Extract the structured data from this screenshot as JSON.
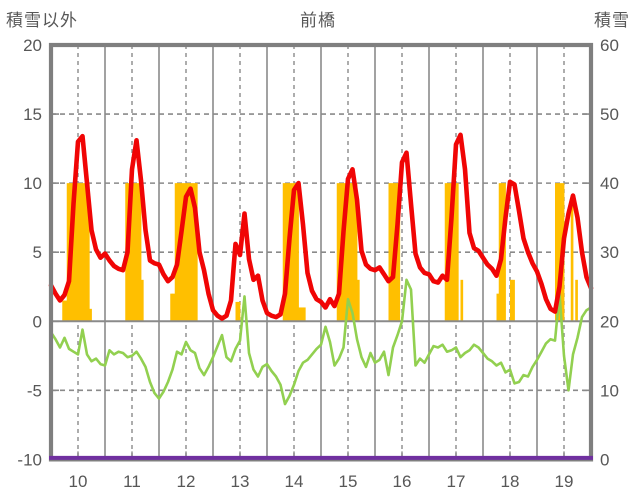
{
  "header": {
    "left_axis_title": "積雪以外",
    "title": "前橋",
    "right_axis_title": "積雪"
  },
  "colors": {
    "red_line": "#f00505",
    "green_line": "#92d050",
    "orange_bars": "#ffbf00",
    "purple_line": "#7030a0",
    "grid": "#8a8a8a",
    "frame": "#7f7f7f",
    "text": "#575757",
    "background": "#ffffff"
  },
  "chart_data": {
    "type": "line+bar",
    "title": "前橋",
    "subtitle": "",
    "x_axis": {
      "start_day": 10,
      "end_day": 20,
      "tick_labels": [
        "10",
        "11",
        "12",
        "13",
        "14",
        "15",
        "16",
        "17",
        "18",
        "19"
      ],
      "gridlines_solid": "day boundaries",
      "gridlines_dashed": "day midpoints"
    },
    "left_axis": {
      "title": "積雪以外",
      "min": -10,
      "max": 20,
      "ticks": [
        20,
        15,
        10,
        5,
        0,
        -5,
        -10
      ]
    },
    "right_axis": {
      "title": "積雪",
      "min": 0,
      "max": 60,
      "ticks": [
        60,
        50,
        40,
        30,
        20,
        10,
        0
      ]
    },
    "grid": {
      "h_dashed_values": [
        15,
        10,
        5,
        -5
      ],
      "h_solid_values": [
        0
      ],
      "legend": "none"
    },
    "sample_step_hours": 2,
    "series": [
      {
        "name": "red_line",
        "type": "line",
        "axis": "left",
        "values": [
          2.6,
          2.0,
          1.5,
          1.9,
          2.9,
          8.5,
          13.0,
          13.4,
          10.0,
          6.6,
          5.2,
          4.6,
          4.9,
          4.4,
          4.0,
          3.8,
          3.7,
          5.0,
          11.0,
          13.1,
          10.2,
          6.6,
          4.4,
          4.2,
          4.1,
          3.4,
          2.9,
          3.2,
          4.1,
          6.5,
          9.0,
          9.6,
          8.2,
          5.0,
          3.7,
          2.0,
          0.8,
          0.4,
          0.2,
          0.4,
          1.5,
          5.6,
          4.8,
          7.8,
          4.5,
          3.0,
          3.3,
          1.5,
          0.6,
          0.4,
          0.3,
          0.5,
          2.0,
          6.0,
          9.5,
          10.0,
          7.0,
          3.5,
          2.2,
          1.6,
          1.4,
          1.0,
          1.6,
          1.1,
          2.0,
          6.5,
          10.3,
          11.0,
          8.8,
          5.1,
          4.1,
          3.8,
          3.7,
          3.9,
          3.4,
          2.9,
          3.2,
          7.0,
          11.5,
          12.2,
          8.5,
          4.9,
          3.9,
          3.5,
          3.4,
          2.9,
          2.8,
          3.3,
          3.0,
          7.5,
          12.8,
          13.5,
          11.0,
          6.4,
          5.3,
          5.1,
          4.6,
          4.1,
          3.8,
          3.3,
          4.5,
          7.5,
          10.1,
          9.9,
          8.0,
          6.0,
          5.0,
          4.2,
          3.6,
          2.7,
          1.6,
          0.9,
          0.7,
          2.5,
          6.0,
          7.8,
          9.1,
          7.5,
          5.0,
          3.2,
          2.4
        ]
      },
      {
        "name": "green_line",
        "type": "line",
        "axis": "left",
        "values": [
          -0.8,
          -1.3,
          -1.9,
          -1.2,
          -2.0,
          -2.2,
          -2.4,
          -0.6,
          -2.4,
          -2.9,
          -2.7,
          -3.1,
          -3.2,
          -2.1,
          -2.4,
          -2.2,
          -2.3,
          -2.6,
          -2.5,
          -2.2,
          -2.7,
          -3.3,
          -4.4,
          -5.2,
          -5.6,
          -5.1,
          -4.4,
          -3.5,
          -2.2,
          -2.4,
          -1.5,
          -2.1,
          -2.3,
          -3.4,
          -3.9,
          -3.3,
          -2.6,
          -1.8,
          -1.0,
          -2.6,
          -2.9,
          -2.0,
          -1.4,
          1.8,
          -2.3,
          -3.5,
          -4.0,
          -3.3,
          -3.1,
          -3.6,
          -4.0,
          -4.6,
          -6.0,
          -5.4,
          -4.6,
          -3.6,
          -3.0,
          -2.8,
          -2.4,
          -2.0,
          -1.7,
          -0.4,
          -1.5,
          -3.2,
          -2.7,
          -1.9,
          1.6,
          0.6,
          -1.3,
          -2.6,
          -3.3,
          -2.3,
          -3.0,
          -2.8,
          -2.2,
          -3.9,
          -1.9,
          -1.0,
          0.0,
          3.0,
          2.3,
          -3.2,
          -2.7,
          -3.0,
          -2.4,
          -1.8,
          -1.9,
          -1.7,
          -2.2,
          -2.1,
          -1.9,
          -2.6,
          -2.3,
          -2.1,
          -1.7,
          -1.9,
          -2.3,
          -2.7,
          -2.9,
          -3.2,
          -3.0,
          -3.7,
          -3.5,
          -4.5,
          -4.4,
          -3.9,
          -4.0,
          -3.3,
          -2.8,
          -2.2,
          -1.6,
          -1.3,
          -1.4,
          2.0,
          -2.5,
          -5.0,
          -2.4,
          -1.2,
          0.3,
          0.8,
          1.0
        ]
      },
      {
        "name": "orange_bars",
        "type": "bar",
        "axis": "left",
        "days": [
          {
            "day": 10,
            "bars": [
              [
                5,
                1.5
              ],
              [
                6,
                1.5
              ],
              [
                7,
                10
              ],
              [
                8,
                10
              ],
              [
                9,
                10
              ],
              [
                10,
                10
              ],
              [
                11,
                10
              ],
              [
                12,
                10
              ],
              [
                13,
                10
              ],
              [
                14,
                10
              ],
              [
                15,
                10
              ],
              [
                16,
                10
              ],
              [
                17,
                0.9
              ]
            ]
          },
          {
            "day": 11,
            "bars": [
              [
                9,
                10
              ],
              [
                10,
                10
              ],
              [
                11,
                10
              ],
              [
                12,
                10
              ],
              [
                13,
                10
              ],
              [
                14,
                10
              ],
              [
                15,
                10
              ],
              [
                16,
                3
              ]
            ]
          },
          {
            "day": 12,
            "bars": [
              [
                5,
                2
              ],
              [
                6,
                2
              ],
              [
                7,
                10
              ],
              [
                8,
                10
              ],
              [
                9,
                10
              ],
              [
                10,
                10
              ],
              [
                11,
                10
              ],
              [
                12,
                10
              ],
              [
                13,
                10
              ],
              [
                14,
                10
              ],
              [
                15,
                10
              ],
              [
                16,
                10
              ]
            ]
          },
          {
            "day": 13,
            "bars": [
              [
                10,
                1.4
              ],
              [
                11,
                1.4
              ]
            ]
          },
          {
            "day": 14,
            "bars": [
              [
                7,
                10
              ],
              [
                8,
                10
              ],
              [
                9,
                10
              ],
              [
                10,
                10
              ],
              [
                11,
                10
              ],
              [
                12,
                10
              ],
              [
                13,
                10
              ],
              [
                14,
                1
              ],
              [
                15,
                1
              ],
              [
                16,
                1
              ]
            ]
          },
          {
            "day": 15,
            "bars": [
              [
                7,
                10
              ],
              [
                8,
                10
              ],
              [
                9,
                10
              ],
              [
                10,
                10
              ],
              [
                11,
                10
              ],
              [
                12,
                10
              ],
              [
                13,
                10
              ],
              [
                14,
                10
              ],
              [
                15,
                10
              ],
              [
                16,
                3
              ]
            ]
          },
          {
            "day": 16,
            "bars": [
              [
                6,
                10
              ],
              [
                7,
                10
              ],
              [
                8,
                10
              ],
              [
                9,
                10
              ],
              [
                10,
                10
              ]
            ]
          },
          {
            "day": 17,
            "bars": [
              [
                7,
                10
              ],
              [
                8,
                10
              ],
              [
                9,
                10
              ],
              [
                10,
                10
              ],
              [
                11,
                10
              ],
              [
                12,
                10
              ],
              [
                14,
                3
              ]
            ]
          },
          {
            "day": 18,
            "bars": [
              [
                6,
                2
              ],
              [
                7,
                10
              ],
              [
                8,
                10
              ],
              [
                9,
                10
              ],
              [
                12,
                3
              ],
              [
                13,
                3
              ]
            ]
          },
          {
            "day": 19,
            "bars": [
              [
                8,
                10
              ],
              [
                9,
                10
              ],
              [
                10,
                10
              ],
              [
                11,
                10
              ],
              [
                15,
                9
              ],
              [
                17,
                3
              ]
            ]
          }
        ]
      },
      {
        "name": "purple_line",
        "type": "line",
        "axis": "right",
        "constant_value": 0
      }
    ]
  }
}
